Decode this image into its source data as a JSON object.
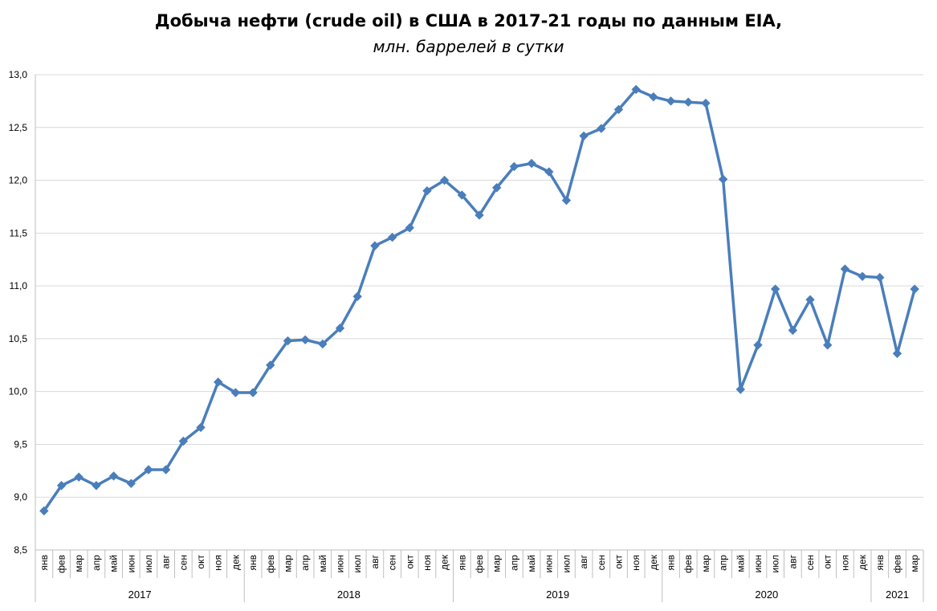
{
  "chart_data": {
    "type": "line",
    "title": "Добыча нефти (crude oil) в США в 2017-21 годы по данным EIA,",
    "subtitle": "млн. баррелей в сутки",
    "ylim": [
      8.5,
      13.0
    ],
    "yticks": [
      "8,5",
      "9,0",
      "9,5",
      "10,0",
      "10,5",
      "11,0",
      "11,5",
      "12,0",
      "12,5",
      "13,0"
    ],
    "grid": true,
    "color": "#4a7ebb",
    "months": [
      "янв",
      "фев",
      "мар",
      "апр",
      "май",
      "июн",
      "июл",
      "авг",
      "сен",
      "окт",
      "ноя",
      "дек",
      "янв",
      "фев",
      "мар",
      "апр",
      "май",
      "июн",
      "июл",
      "авг",
      "сен",
      "окт",
      "ноя",
      "дек",
      "янв",
      "фев",
      "мар",
      "апр",
      "май",
      "июн",
      "июл",
      "авг",
      "сен",
      "окт",
      "ноя",
      "дек",
      "янв",
      "фев",
      "мар",
      "апр",
      "май",
      "июн",
      "июл",
      "авг",
      "сен",
      "окт",
      "ноя",
      "дек",
      "янв",
      "фев",
      "мар"
    ],
    "years": [
      {
        "label": "2017",
        "count": 12
      },
      {
        "label": "2018",
        "count": 12
      },
      {
        "label": "2019",
        "count": 12
      },
      {
        "label": "2020",
        "count": 12
      },
      {
        "label": "2021",
        "count": 3
      }
    ],
    "series": [
      {
        "values": [
          8.87,
          9.11,
          9.19,
          9.11,
          9.2,
          9.13,
          9.26,
          9.26,
          9.53,
          9.66,
          10.09,
          9.99,
          9.99,
          10.25,
          10.48,
          10.49,
          10.45,
          10.6,
          10.9,
          11.38,
          11.46,
          11.55,
          11.9,
          12.0,
          11.86,
          11.67,
          11.93,
          12.13,
          12.16,
          12.08,
          11.81,
          12.42,
          12.49,
          12.67,
          12.86,
          12.79,
          12.75,
          12.74,
          12.73,
          12.01,
          10.02,
          10.44,
          10.97,
          10.58,
          10.87,
          10.44,
          11.16,
          11.09,
          11.08,
          10.36,
          10.97
        ]
      }
    ]
  }
}
